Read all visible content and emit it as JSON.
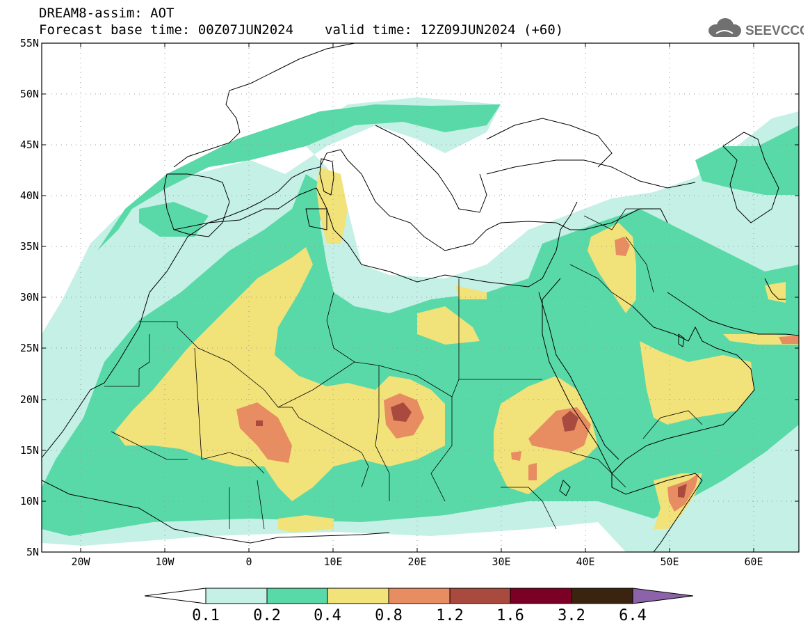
{
  "header": {
    "line1": "DREAM8-assim: AOT",
    "base_time": "Forecast base time: 00Z07JUN2024",
    "valid_time": "valid time: 12Z09JUN2024 (+60)"
  },
  "logo": {
    "text": "SEEVCCC",
    "icon": "cloud-icon",
    "color": "#707070"
  },
  "map": {
    "projection": "lat-lon",
    "lon_range": [
      -25,
      65
    ],
    "lat_range": [
      5,
      55
    ],
    "grid": "dotted",
    "lat_ticks": [
      "55N",
      "50N",
      "45N",
      "40N",
      "35N",
      "30N",
      "25N",
      "20N",
      "15N",
      "10N",
      "5N"
    ],
    "lon_ticks": [
      "20W",
      "10W",
      "0",
      "10E",
      "20E",
      "30E",
      "40E",
      "50E",
      "60E"
    ]
  },
  "colorbar": {
    "levels": [
      "0.1",
      "0.2",
      "0.4",
      "0.8",
      "1.2",
      "1.6",
      "3.2",
      "6.4"
    ],
    "colors": [
      "#c4f0e6",
      "#59d9a8",
      "#f2e27a",
      "#e88c62",
      "#a84a3e",
      "#7a0025",
      "#3a2410",
      "#8c62a8"
    ]
  }
}
